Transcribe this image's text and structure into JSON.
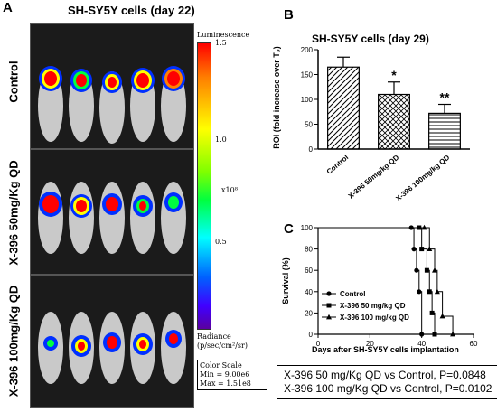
{
  "panel_a": {
    "label": "A",
    "title": "SH-SY5Y cells (day 22)",
    "rows": [
      "Control",
      "X-396 50mg/Kg QD",
      "X-396 100mg/Kg QD"
    ],
    "colorbar": {
      "top_label": "Luminescence",
      "ticks": [
        "1.5",
        "1.0",
        "0.5"
      ],
      "multiplier": "x10⁸",
      "unit_title": "Radiance",
      "unit": "(p/sec/cm²/sr)",
      "scale_title": "Color Scale",
      "min": "Min = 9.00e6",
      "max": "Max = 1.51e8"
    },
    "colors": {
      "high": "#ff0000",
      "mid": "#00ff40",
      "low": "#4000ff",
      "background": "#1b1b1b"
    }
  },
  "chart_data": [
    {
      "type": "bar",
      "panel": "B",
      "title": "SH-SY5Y cells (day 29)",
      "categories": [
        "Control",
        "X-396 50mg/kg QD",
        "X-396 100mg/kg QD"
      ],
      "values": [
        165,
        110,
        72
      ],
      "errors": [
        20,
        25,
        18
      ],
      "annotations": [
        "",
        "*",
        "**"
      ],
      "ylabel": "ROI (fold increase over T₀)",
      "ylim": [
        0,
        200
      ],
      "yticks": [
        0,
        50,
        100,
        150,
        200
      ]
    },
    {
      "type": "line",
      "panel": "C",
      "title": "",
      "xlabel": "Days after SH-SY5Y cells implantation",
      "ylabel": "Survival (%)",
      "xlim": [
        0,
        60
      ],
      "ylim": [
        0,
        100
      ],
      "xticks": [
        0,
        20,
        40,
        60
      ],
      "yticks": [
        0,
        20,
        40,
        60,
        80,
        100
      ],
      "legend_position": "inside-left",
      "series": [
        {
          "name": "Control",
          "marker": "circle",
          "x": [
            0,
            36,
            37,
            38,
            39,
            40
          ],
          "y": [
            100,
            100,
            80,
            60,
            40,
            0
          ]
        },
        {
          "name": "X-396 50 mg/kg QD",
          "marker": "square",
          "x": [
            0,
            39,
            40,
            42,
            43,
            44,
            45
          ],
          "y": [
            100,
            100,
            80,
            60,
            40,
            20,
            0
          ]
        },
        {
          "name": "X-396 100 mg/kg QD",
          "marker": "triangle",
          "x": [
            0,
            41,
            43,
            45,
            46,
            48,
            52
          ],
          "y": [
            100,
            100,
            80,
            60,
            40,
            17,
            0
          ]
        }
      ],
      "stats": [
        "X-396 50 mg/Kg QD vs Control, P=0.0848",
        "X-396 100 mg/Kg QD vs Control, P=0.0102"
      ]
    }
  ]
}
